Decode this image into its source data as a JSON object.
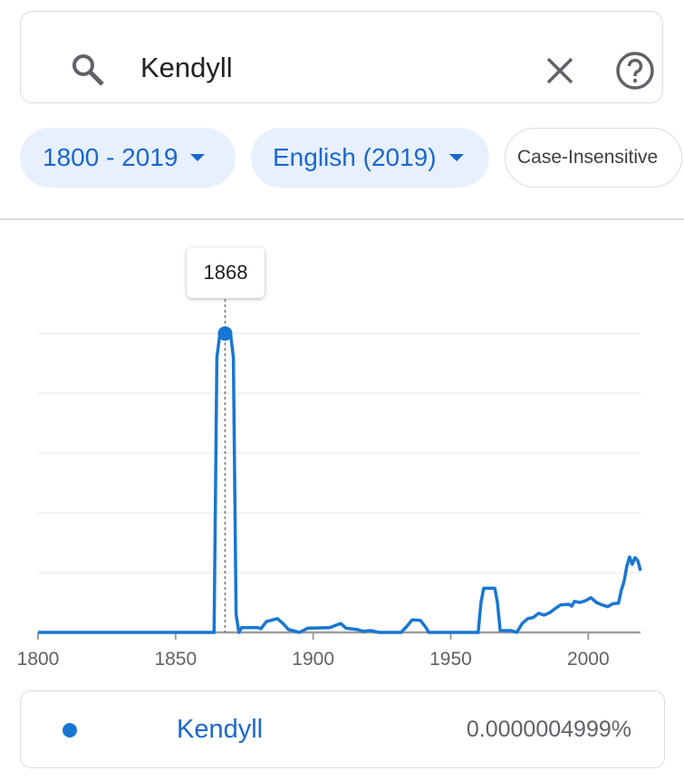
{
  "search": {
    "query": "Kendyll",
    "icons": {
      "search": "search-icon",
      "clear": "close-icon",
      "help": "help-circle-icon"
    }
  },
  "filters": [
    {
      "label": "1800 - 2019",
      "selected": true
    },
    {
      "label": "English (2019)",
      "selected": true
    },
    {
      "label": "Case-Insensitive",
      "selected": false
    }
  ],
  "tooltip": {
    "year": "1868"
  },
  "legend": {
    "term": "Kendyll",
    "value": "0.0000004999%",
    "color": "#1976d2"
  },
  "chart_data": {
    "type": "line",
    "xlim": [
      1800,
      2019
    ],
    "ylim": [
      0,
      5e-07
    ],
    "y_unit": "%",
    "x_ticks": [
      "1800",
      "1850",
      "1900",
      "1950",
      "2000"
    ],
    "grid": true,
    "highlight": {
      "x": 1868,
      "y": 4.999e-07
    },
    "series": [
      {
        "name": "Kendyll",
        "color": "#1976d2",
        "points": [
          [
            1800,
            0
          ],
          [
            1864,
            0
          ],
          [
            1865,
            4.6e-07
          ],
          [
            1866,
            4.95e-07
          ],
          [
            1868,
            4.999e-07
          ],
          [
            1870,
            4.98e-07
          ],
          [
            1871,
            4.6e-07
          ],
          [
            1872,
            3e-08
          ],
          [
            1873,
            0
          ],
          [
            1874,
            8e-09
          ],
          [
            1880,
            8e-09
          ],
          [
            1881,
            6e-09
          ],
          [
            1883,
            1.8e-08
          ],
          [
            1887,
            2.3e-08
          ],
          [
            1889,
            1.5e-08
          ],
          [
            1891,
            5e-09
          ],
          [
            1895,
            0
          ],
          [
            1898,
            7e-09
          ],
          [
            1906,
            8e-09
          ],
          [
            1910,
            1.5e-08
          ],
          [
            1912,
            7e-09
          ],
          [
            1916,
            5e-09
          ],
          [
            1918,
            2e-09
          ],
          [
            1921,
            3e-09
          ],
          [
            1924,
            0
          ],
          [
            1932,
            0
          ],
          [
            1934,
            1e-08
          ],
          [
            1936,
            2.1e-08
          ],
          [
            1939,
            2e-08
          ],
          [
            1941,
            8e-09
          ],
          [
            1942,
            0
          ],
          [
            1960,
            0
          ],
          [
            1961,
            5e-08
          ],
          [
            1962,
            7.4e-08
          ],
          [
            1966,
            7.4e-08
          ],
          [
            1967,
            5e-08
          ],
          [
            1968,
            3e-09
          ],
          [
            1972,
            3e-09
          ],
          [
            1974,
            0
          ],
          [
            1976,
            1.5e-08
          ],
          [
            1978,
            2.3e-08
          ],
          [
            1980,
            2.5e-08
          ],
          [
            1982,
            3.2e-08
          ],
          [
            1984,
            2.9e-08
          ],
          [
            1986,
            3.3e-08
          ],
          [
            1988,
            4e-08
          ],
          [
            1990,
            4.6e-08
          ],
          [
            1993,
            4.7e-08
          ],
          [
            1994,
            4.4e-08
          ],
          [
            1995,
            5.2e-08
          ],
          [
            1997,
            5e-08
          ],
          [
            1999,
            5.3e-08
          ],
          [
            2001,
            5.8e-08
          ],
          [
            2003,
            5e-08
          ],
          [
            2005,
            4.6e-08
          ],
          [
            2007,
            4.3e-08
          ],
          [
            2009,
            4.8e-08
          ],
          [
            2011,
            4.9e-08
          ],
          [
            2012,
            7e-08
          ],
          [
            2013,
            8.5e-08
          ],
          [
            2014,
            1.1e-07
          ],
          [
            2015,
            1.26e-07
          ],
          [
            2016,
            1.14e-07
          ],
          [
            2017,
            1.25e-07
          ],
          [
            2018,
            1.2e-07
          ],
          [
            2019,
            1.03e-07
          ]
        ]
      }
    ]
  }
}
